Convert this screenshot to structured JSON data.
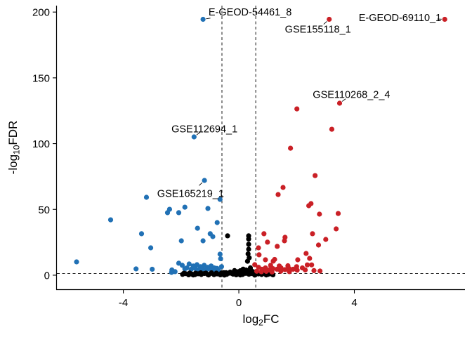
{
  "figure": {
    "kind": "volcano-plot",
    "background": "#ffffff"
  },
  "chart_data": {
    "type": "scatter",
    "title": "",
    "xlabel": "log2FC",
    "xlabel_parts": {
      "pre": "log",
      "sub": "2",
      "post": "FC"
    },
    "ylabel": "-log10FDR",
    "ylabel_parts": {
      "pre": "-log",
      "sub": "10",
      "post": "FDR"
    },
    "xlim": [
      -6.3,
      7.83
    ],
    "ylim": [
      -10.7,
      204.9
    ],
    "x_ticks": [
      -4,
      0,
      4
    ],
    "y_ticks": [
      0,
      50,
      100,
      150,
      200
    ],
    "grid": false,
    "legend": "none",
    "point_radius": 3.6,
    "colors": {
      "down": "#2171B5",
      "neutral": "#000000",
      "up": "#CA2026",
      "axis": "#000000",
      "threshold_line": "#000000"
    },
    "thresholds": {
      "vlines": [
        -0.585,
        0.585
      ],
      "hline": 1.3,
      "style": "dashed"
    },
    "series": [
      {
        "name": "down-significant",
        "color": "#2171B5",
        "points": [
          [
            -1.24,
            194.5
          ],
          [
            -1.55,
            105.1
          ],
          [
            -1.19,
            72.0
          ],
          [
            -3.2,
            59.2
          ],
          [
            -2.4,
            50.1
          ],
          [
            -2.47,
            47.5
          ],
          [
            -2.08,
            47.5
          ],
          [
            -1.87,
            51.7
          ],
          [
            -1.07,
            50.7
          ],
          [
            -4.44,
            42.1
          ],
          [
            -0.65,
            57.6
          ],
          [
            -3.37,
            31.5
          ],
          [
            -1.99,
            26.1
          ],
          [
            -1.43,
            35.7
          ],
          [
            -0.75,
            40.0
          ],
          [
            -0.99,
            31.5
          ],
          [
            -0.9,
            29.3
          ],
          [
            -1.24,
            26.1
          ],
          [
            -3.05,
            20.8
          ],
          [
            -5.62,
            10.1
          ],
          [
            -0.65,
            16.0
          ],
          [
            -0.63,
            12.5
          ],
          [
            -3.56,
            4.8
          ],
          [
            -3.0,
            4.5
          ],
          [
            -2.08,
            9.1
          ],
          [
            -2.21,
            2.7
          ],
          [
            -1.96,
            7.5
          ],
          [
            -1.87,
            4.8
          ],
          [
            -1.72,
            8.5
          ],
          [
            -1.58,
            7.0
          ],
          [
            -1.45,
            8.0
          ],
          [
            -1.33,
            6.5
          ],
          [
            -1.2,
            7.5
          ],
          [
            -1.08,
            6.0
          ],
          [
            -0.96,
            7.0
          ],
          [
            -0.85,
            5.5
          ],
          [
            -1.8,
            5.5
          ],
          [
            -1.65,
            4.5
          ],
          [
            -1.5,
            5.0
          ],
          [
            -1.38,
            4.0
          ],
          [
            -1.25,
            4.8
          ],
          [
            -1.12,
            4.2
          ],
          [
            -1.0,
            5.0
          ],
          [
            -0.88,
            4.0
          ],
          [
            -0.76,
            5.2
          ],
          [
            -0.7,
            3.5
          ],
          [
            -2.32,
            4.0
          ],
          [
            -0.6,
            6.5
          ],
          [
            -2.33,
            2.1
          ]
        ]
      },
      {
        "name": "not-significant",
        "color": "#000000",
        "points": [
          [
            0.34,
            29.9
          ],
          [
            0.34,
            27.5
          ],
          [
            0.34,
            23.5
          ],
          [
            0.34,
            19.7
          ],
          [
            0.32,
            16.2
          ],
          [
            0.36,
            13.2
          ],
          [
            0.3,
            10.6
          ],
          [
            -0.39,
            29.9
          ],
          [
            0.05,
            3.4
          ],
          [
            0.25,
            3.9
          ],
          [
            -0.15,
            3.5
          ],
          [
            0.45,
            3.1
          ],
          [
            0.15,
            4.6
          ],
          [
            0.4,
            5.6
          ],
          [
            -0.05,
            2.6
          ],
          [
            0.52,
            2.4
          ],
          [
            -0.3,
            2.3
          ],
          [
            -0.52,
            1.9
          ],
          [
            0.1,
            2.2
          ],
          [
            0.3,
            2.8
          ],
          [
            -1.95,
            0.6
          ],
          [
            -1.85,
            1.2
          ],
          [
            -1.74,
            0.3
          ],
          [
            -1.63,
            0.9
          ],
          [
            -1.52,
            0.4
          ],
          [
            -1.41,
            1.1
          ],
          [
            -1.3,
            0.5
          ],
          [
            -1.19,
            1.3
          ],
          [
            -1.08,
            0.6
          ],
          [
            -0.97,
            1.4
          ],
          [
            -0.86,
            0.4
          ],
          [
            -0.75,
            1.0
          ],
          [
            -0.64,
            0.3
          ],
          [
            -0.53,
            1.2
          ],
          [
            -0.42,
            0.6
          ],
          [
            -0.31,
            1.5
          ],
          [
            -0.2,
            0.8
          ],
          [
            -0.09,
            0.3
          ],
          [
            0.02,
            1.1
          ],
          [
            0.13,
            0.5
          ],
          [
            0.24,
            1.4
          ],
          [
            0.35,
            0.7
          ],
          [
            0.46,
            1.2
          ],
          [
            0.57,
            0.4
          ],
          [
            0.68,
            1.0
          ],
          [
            0.79,
            0.5
          ],
          [
            0.9,
            1.3
          ],
          [
            1.01,
            0.6
          ],
          [
            1.12,
            1.0
          ],
          [
            1.18,
            0.3
          ],
          [
            -1.9,
            1.5
          ],
          [
            -1.7,
            1.7
          ],
          [
            -1.5,
            1.5
          ],
          [
            -1.32,
            1.8
          ],
          [
            -1.14,
            1.6
          ],
          [
            -0.95,
            1.8
          ],
          [
            -0.78,
            1.6
          ],
          [
            -0.6,
            1.7
          ],
          [
            -0.44,
            1.9
          ],
          [
            -0.25,
            1.7
          ],
          [
            -0.08,
            1.8
          ],
          [
            0.1,
            1.7
          ],
          [
            0.28,
            1.9
          ],
          [
            0.47,
            1.8
          ],
          [
            0.65,
            1.6
          ],
          [
            0.83,
            1.8
          ],
          [
            1.0,
            1.6
          ],
          [
            1.14,
            1.4
          ],
          [
            -1.58,
            0.2
          ],
          [
            -1.05,
            0.2
          ],
          [
            -0.5,
            0.1
          ],
          [
            0.05,
            0.2
          ],
          [
            0.55,
            0.1
          ],
          [
            0.95,
            0.2
          ]
        ]
      },
      {
        "name": "up-significant",
        "color": "#CA2026",
        "points": [
          [
            3.13,
            194.5
          ],
          [
            7.13,
            194.5
          ],
          [
            3.49,
            130.7
          ],
          [
            2.01,
            126.4
          ],
          [
            3.22,
            110.9
          ],
          [
            1.79,
            96.5
          ],
          [
            2.64,
            75.7
          ],
          [
            1.53,
            66.7
          ],
          [
            1.36,
            61.3
          ],
          [
            2.5,
            54.4
          ],
          [
            2.42,
            52.8
          ],
          [
            2.79,
            46.4
          ],
          [
            3.44,
            46.9
          ],
          [
            3.37,
            35.2
          ],
          [
            2.55,
            31.5
          ],
          [
            3.01,
            27.2
          ],
          [
            1.58,
            26.1
          ],
          [
            1.33,
            21.9
          ],
          [
            2.76,
            22.9
          ],
          [
            2.33,
            16.5
          ],
          [
            2.45,
            12.8
          ],
          [
            2.04,
            11.7
          ],
          [
            0.87,
            31.5
          ],
          [
            0.99,
            25.1
          ],
          [
            1.6,
            28.8
          ],
          [
            0.68,
            20.8
          ],
          [
            0.7,
            15.5
          ],
          [
            0.92,
            11.7
          ],
          [
            1.19,
            10.7
          ],
          [
            1.24,
            12.0
          ],
          [
            0.55,
            8.0
          ],
          [
            0.68,
            6.0
          ],
          [
            0.8,
            4.5
          ],
          [
            0.92,
            5.5
          ],
          [
            1.05,
            4.0
          ],
          [
            1.18,
            5.0
          ],
          [
            1.32,
            4.5
          ],
          [
            1.46,
            5.5
          ],
          [
            1.6,
            4.2
          ],
          [
            1.74,
            5.0
          ],
          [
            1.88,
            4.5
          ],
          [
            2.02,
            3.8
          ],
          [
            1.1,
            7.5
          ],
          [
            1.4,
            7.0
          ],
          [
            1.7,
            7.2
          ],
          [
            2.0,
            6.5
          ],
          [
            2.2,
            5.5
          ],
          [
            2.37,
            7.8
          ],
          [
            2.52,
            7.8
          ],
          [
            2.3,
            4.0
          ],
          [
            2.6,
            3.5
          ],
          [
            0.62,
            3.0
          ],
          [
            0.78,
            2.6
          ],
          [
            0.95,
            2.9
          ],
          [
            1.15,
            2.4
          ],
          [
            1.45,
            3.0
          ],
          [
            1.75,
            2.7
          ],
          [
            2.81,
            3.2
          ]
        ]
      }
    ],
    "annotations": [
      {
        "text": "E-GEOD-54461_8",
        "point": [
          -1.24,
          194.5
        ],
        "label": [
          0.39,
          200.2
        ]
      },
      {
        "text": "GSE155118_1",
        "point": [
          3.13,
          194.5
        ],
        "label": [
          2.74,
          186.9
        ]
      },
      {
        "text": "E-GEOD-69110_1",
        "point": [
          7.13,
          194.5
        ],
        "label": [
          5.58,
          195.9
        ]
      },
      {
        "text": "GSE110268_2_4",
        "point": [
          3.49,
          130.7
        ],
        "label": [
          3.9,
          137.3
        ]
      },
      {
        "text": "GSE112694_1",
        "point": [
          -1.55,
          105.1
        ],
        "label": [
          -1.19,
          111.2
        ]
      },
      {
        "text": "GSE165219_1",
        "point": [
          -1.19,
          72.0
        ],
        "label": [
          -1.67,
          62.1
        ]
      }
    ]
  }
}
